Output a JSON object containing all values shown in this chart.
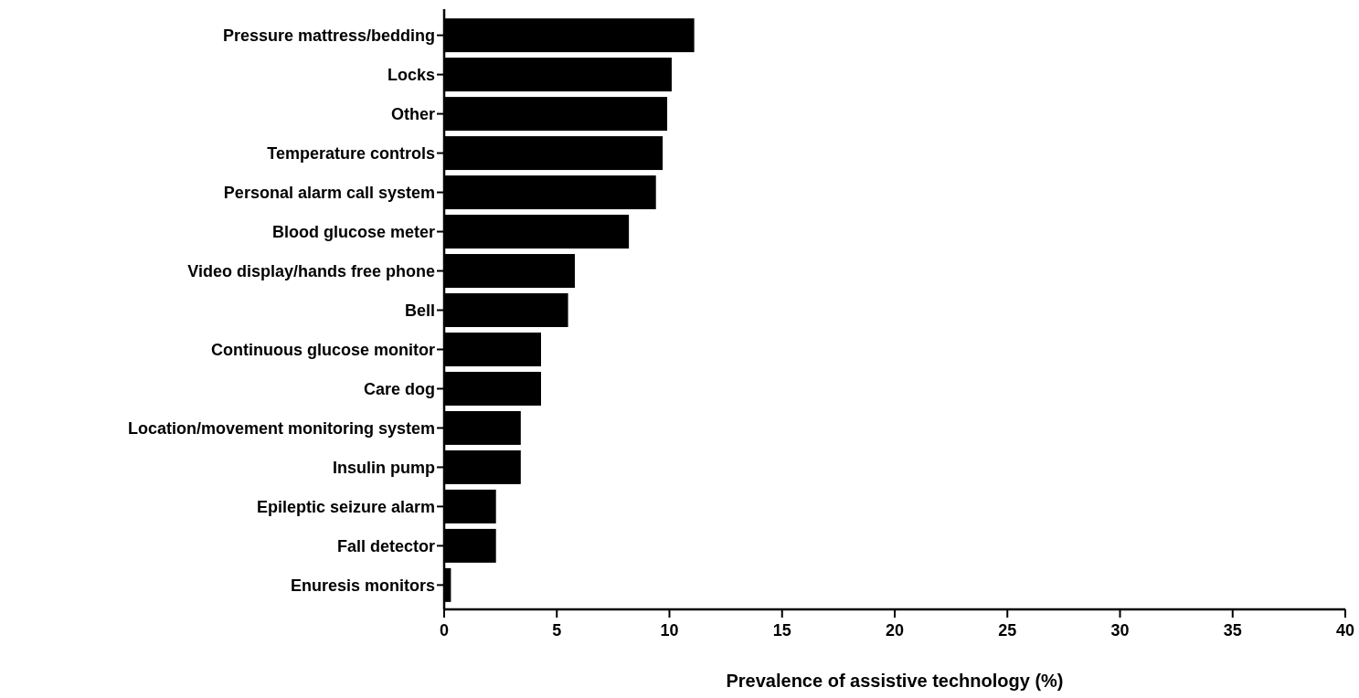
{
  "chart_data": {
    "type": "bar",
    "orientation": "horizontal",
    "xlabel": "Prevalence of assistive technology (%)",
    "categories": [
      "Pressure mattress/bedding",
      "Locks",
      "Other",
      "Temperature controls",
      "Personal alarm call system",
      "Blood glucose meter",
      "Video display/hands free phone",
      "Bell",
      "Continuous glucose monitor",
      "Care dog",
      "Location/movement monitoring system",
      "Insulin pump",
      "Epileptic seizure alarm",
      "Fall detector",
      "Enuresis monitors"
    ],
    "values": [
      11.1,
      10.1,
      9.9,
      9.7,
      9.4,
      8.2,
      5.8,
      5.5,
      4.3,
      4.3,
      3.4,
      3.4,
      2.3,
      2.3,
      0.3
    ],
    "color": "#000000",
    "xlim": [
      0,
      40
    ],
    "xticks": [
      0,
      5,
      10,
      15,
      20,
      25,
      30,
      35,
      40
    ],
    "grid": false
  }
}
